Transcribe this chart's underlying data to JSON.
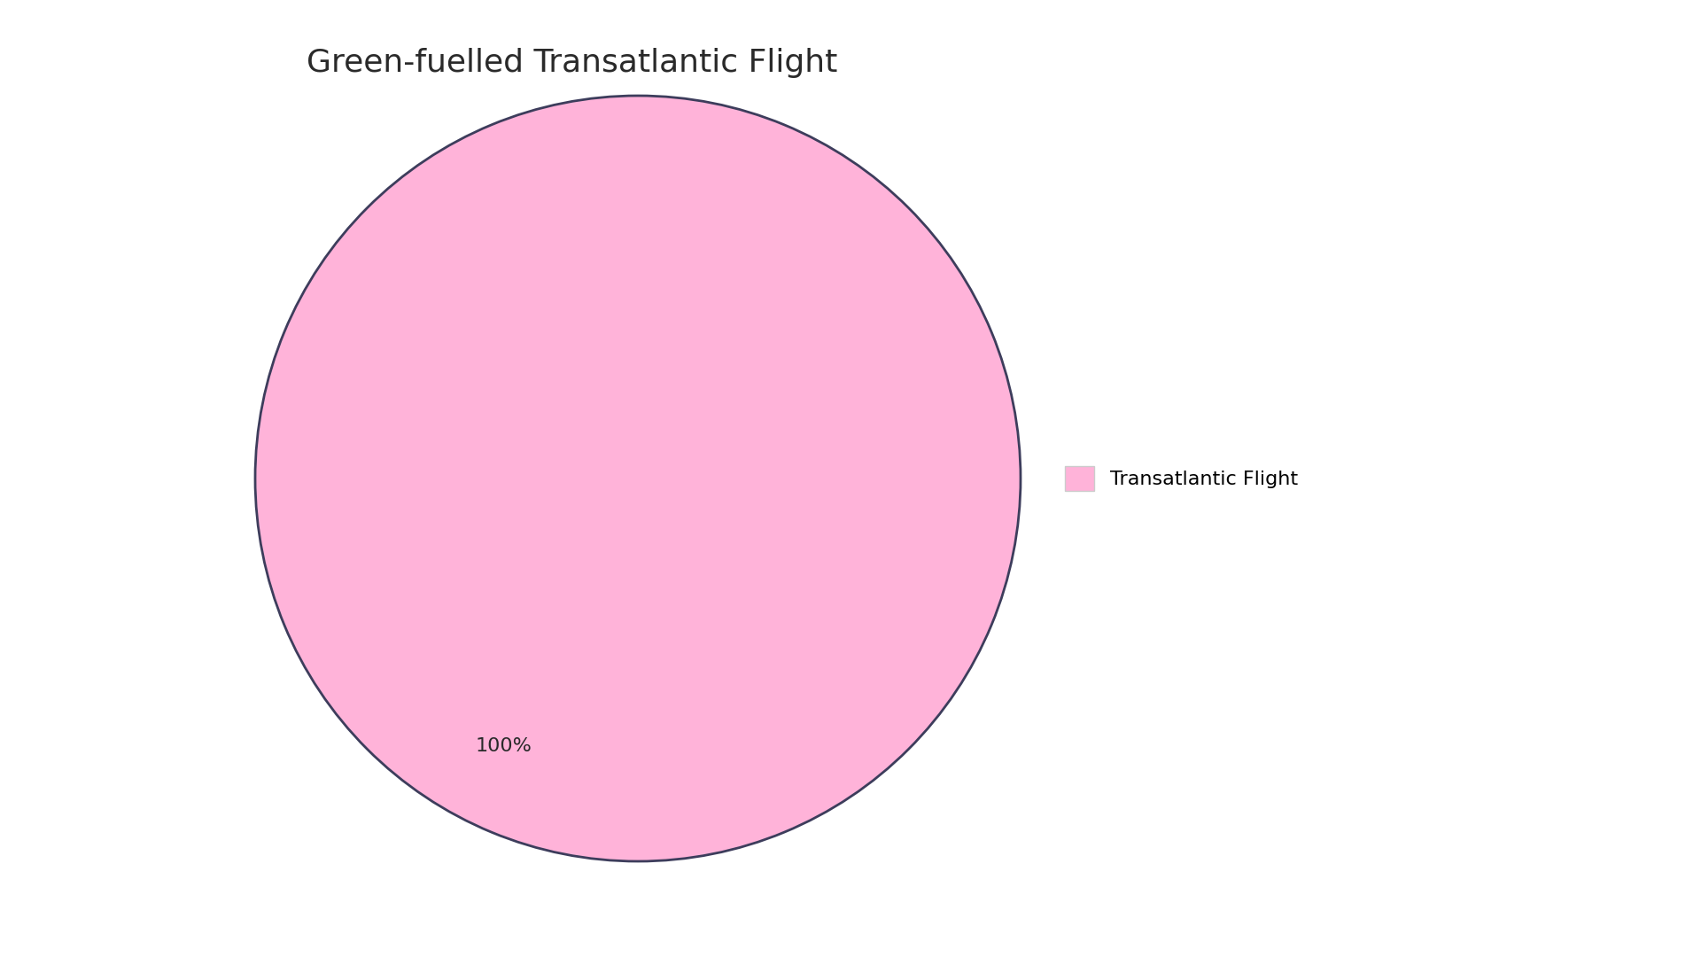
{
  "title": "Green-fuelled Transatlantic Flight",
  "slices": [
    100
  ],
  "labels": [
    "Transatlantic Flight"
  ],
  "colors": [
    "#FFB3D9"
  ],
  "edge_color": "#3d3d5c",
  "edge_linewidth": 2.0,
  "autopct_labels": [
    "100%"
  ],
  "background_color": "#ffffff",
  "title_fontsize": 26,
  "title_color": "#2a2a2a",
  "legend_fontsize": 16,
  "autopct_fontsize": 16,
  "autopct_color": "#2a2a2a"
}
